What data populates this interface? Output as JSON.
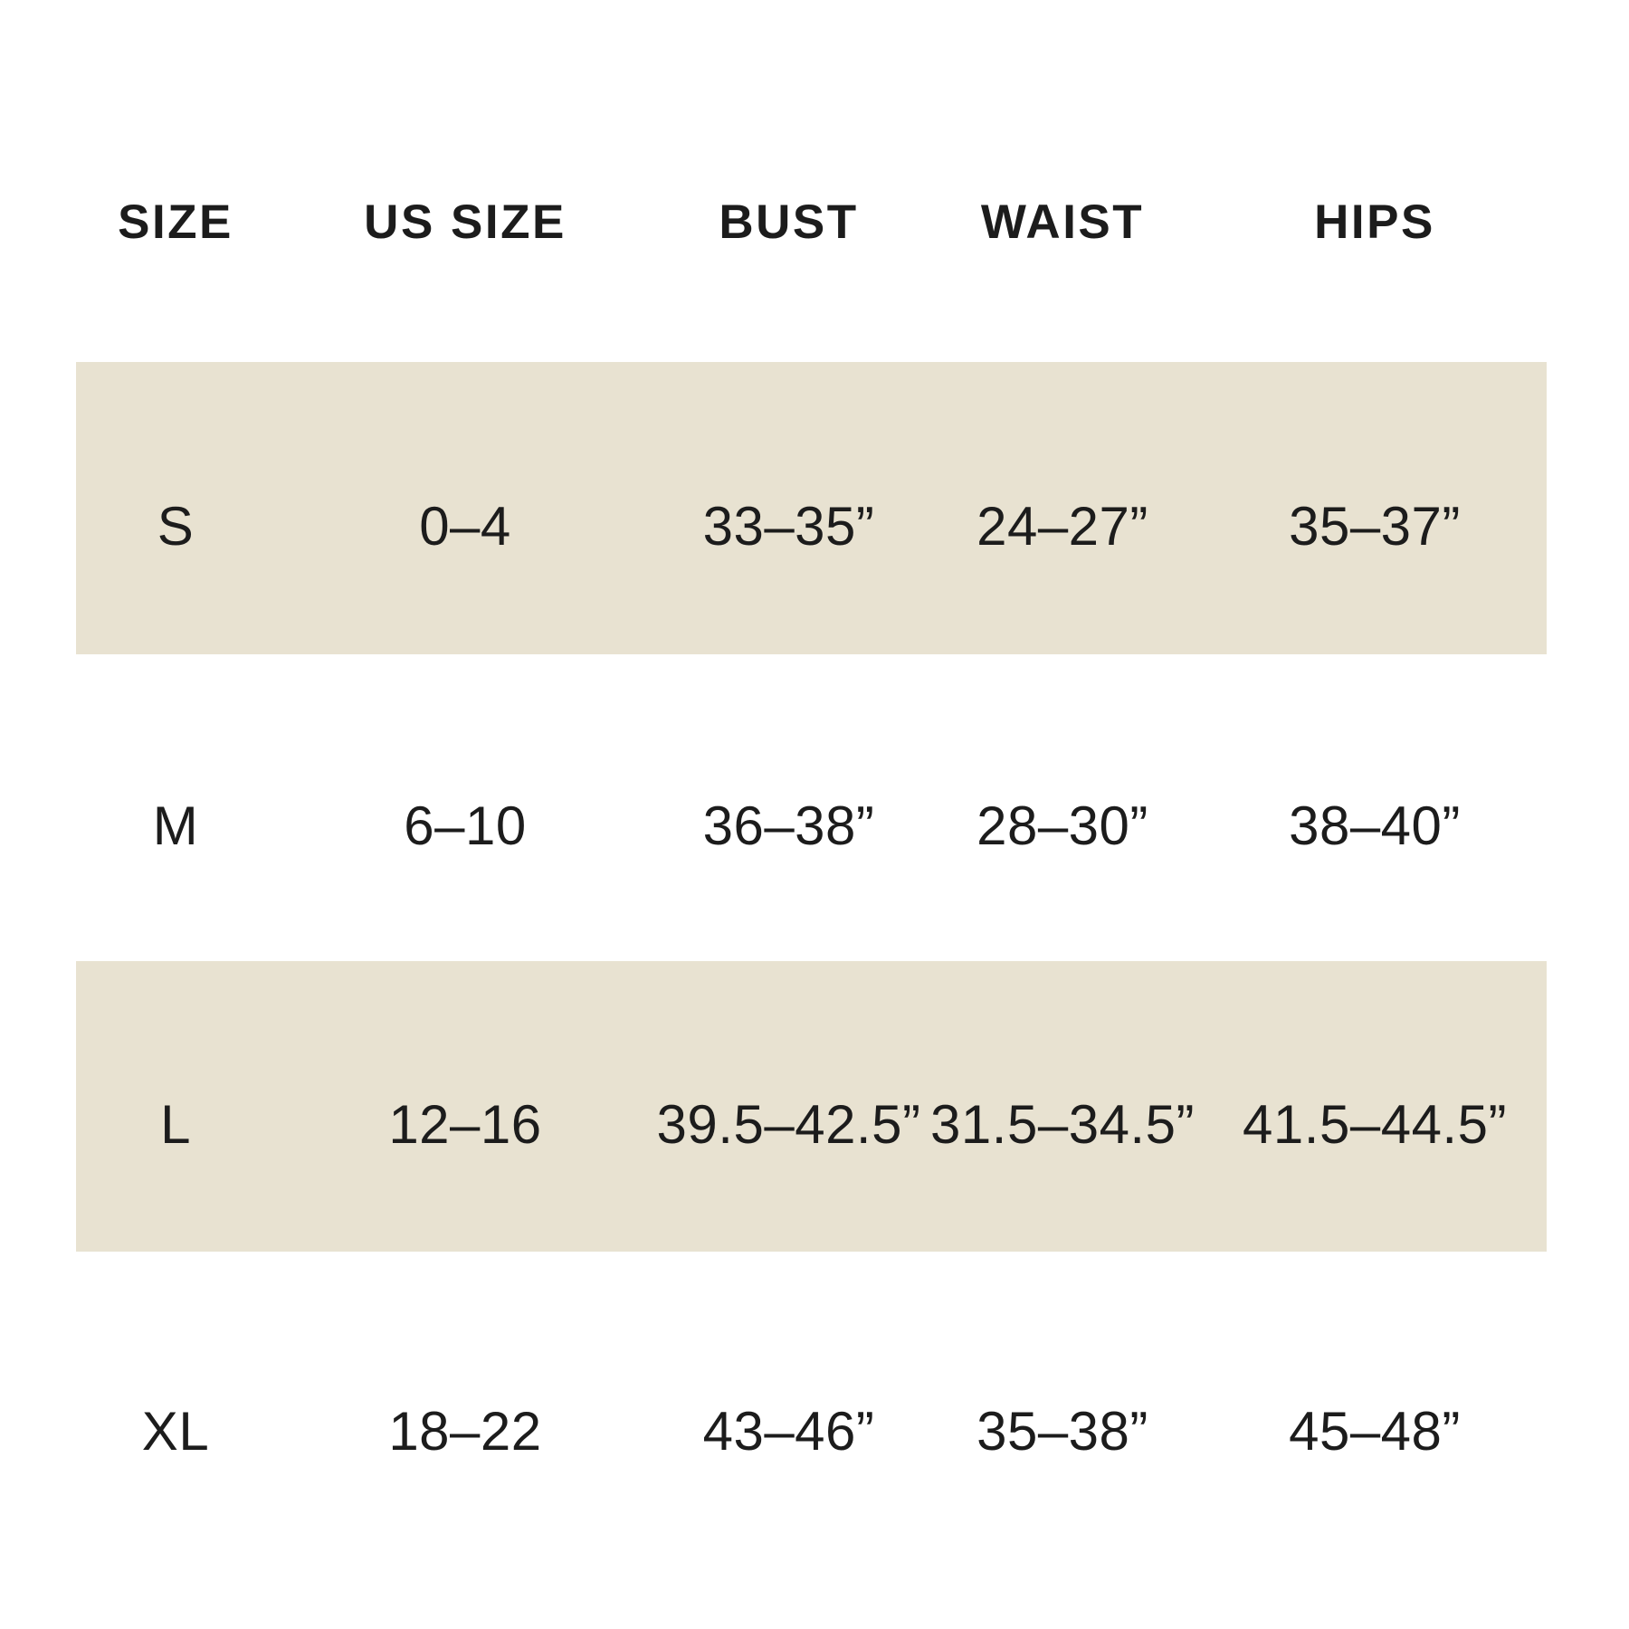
{
  "colors": {
    "background": "#ffffff",
    "shaded_row": "#e8e2d1",
    "text": "#1c1c1c"
  },
  "table": {
    "columns": [
      "SIZE",
      "US SIZE",
      "BUST",
      "WAIST",
      "HIPS"
    ],
    "rows": [
      {
        "size": "S",
        "us_size": "0–4",
        "bust": "33–35”",
        "waist": "24–27”",
        "hips": "35–37”"
      },
      {
        "size": "M",
        "us_size": "6–10",
        "bust": "36–38”",
        "waist": "28–30”",
        "hips": "38–40”"
      },
      {
        "size": "L",
        "us_size": "12–16",
        "bust": "39.5–42.5”",
        "waist": "31.5–34.5”",
        "hips": "41.5–44.5”"
      },
      {
        "size": "XL",
        "us_size": "18–22",
        "bust": "43–46”",
        "waist": "35–38”",
        "hips": "45–48”"
      }
    ]
  },
  "chart_data": {
    "type": "table",
    "title": "",
    "columns": [
      "SIZE",
      "US SIZE",
      "BUST",
      "WAIST",
      "HIPS"
    ],
    "rows": [
      [
        "S",
        "0–4",
        "33–35”",
        "24–27”",
        "35–37”"
      ],
      [
        "M",
        "6–10",
        "36–38”",
        "28–30”",
        "38–40”"
      ],
      [
        "L",
        "12–16",
        "39.5–42.5”",
        "31.5–34.5”",
        "41.5–44.5”"
      ],
      [
        "XL",
        "18–22",
        "43–46”",
        "35–38”",
        "45–48”"
      ]
    ],
    "layout_hints": {
      "striped_rows": [
        "S",
        "L"
      ],
      "stripe_color": "#e8e2d1",
      "grid": false,
      "borders": false
    }
  }
}
